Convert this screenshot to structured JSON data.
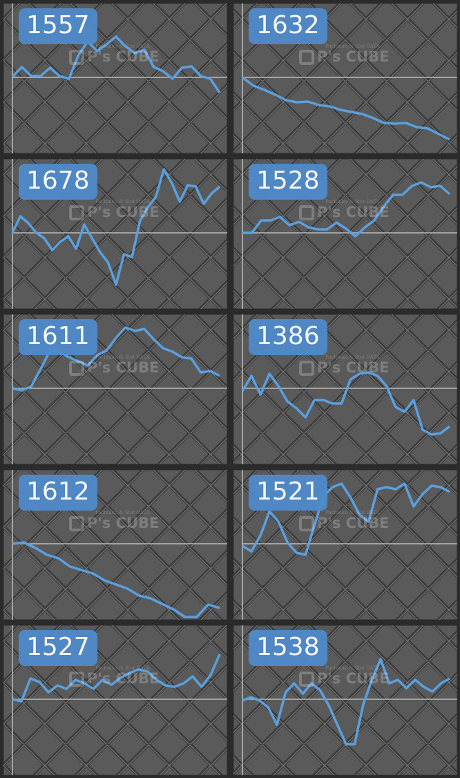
{
  "watermark": {
    "line1": "Pachinko & Slot DATA",
    "logo": "P's CUBE"
  },
  "colors": {
    "line": "#5aa0e0",
    "label_bg": "#4f8bcb",
    "panel_bg": "#5a5a5a",
    "baseline": "#bdbdbd"
  },
  "chart_data": [
    {
      "type": "line",
      "title": "1557",
      "values": [
        1,
        15,
        2,
        2,
        14,
        2,
        -2,
        32,
        52,
        38,
        48,
        59,
        45,
        35,
        40,
        15,
        9,
        -2,
        14,
        16,
        2,
        -2,
        -22
      ]
    },
    {
      "type": "line",
      "title": "1632",
      "values": [
        0,
        -12,
        -18,
        -25,
        -33,
        -36,
        -35,
        -40,
        -42,
        -47,
        -50,
        -53,
        -59,
        -66,
        -67,
        -66,
        -72,
        -74,
        -82,
        -90
      ]
    },
    {
      "type": "line",
      "title": "1678",
      "values": [
        0,
        24,
        14,
        0,
        -8,
        -25,
        -13,
        -5,
        -23,
        12,
        -8,
        -28,
        -43,
        -75,
        -31,
        -35,
        17,
        37,
        52,
        92,
        72,
        45,
        69,
        67,
        42,
        57,
        67
      ]
    },
    {
      "type": "line",
      "title": "1528",
      "values": [
        0,
        0,
        18,
        18,
        23,
        11,
        16,
        8,
        5,
        5,
        15,
        6,
        -5,
        8,
        18,
        38,
        55,
        55,
        68,
        73,
        66,
        68,
        56
      ]
    },
    {
      "type": "line",
      "title": "1611",
      "values": [
        0,
        -3,
        3,
        28,
        55,
        53,
        45,
        39,
        33,
        48,
        55,
        73,
        88,
        83,
        86,
        71,
        58,
        53,
        45,
        43,
        23,
        25,
        18
      ]
    },
    {
      "type": "line",
      "title": "1386",
      "values": [
        -4,
        18,
        -9,
        21,
        3,
        -19,
        -29,
        -42,
        -17,
        -17,
        -22,
        -22,
        13,
        21,
        23,
        18,
        3,
        -27,
        -34,
        -17,
        -60,
        -67,
        -65,
        -55
      ]
    },
    {
      "type": "line",
      "title": "1612",
      "values": [
        0,
        2,
        -6,
        -16,
        -21,
        -33,
        -38,
        -43,
        -53,
        -59,
        -65,
        -75,
        -79,
        -87,
        -95,
        -106,
        -106,
        -88,
        -93
      ]
    },
    {
      "type": "line",
      "title": "1521",
      "values": [
        -3,
        -11,
        12,
        47,
        32,
        2,
        -13,
        -16,
        27,
        69,
        82,
        87,
        67,
        42,
        32,
        79,
        82,
        79,
        87,
        54,
        72,
        84,
        82,
        75
      ]
    },
    {
      "type": "line",
      "title": "1527",
      "values": [
        0,
        -3,
        30,
        25,
        10,
        20,
        15,
        28,
        23,
        15,
        28,
        21,
        31,
        38,
        43,
        40,
        28,
        20,
        18,
        23,
        33,
        18,
        35,
        65
      ]
    },
    {
      "type": "line",
      "title": "1538",
      "values": [
        -2,
        3,
        -2,
        -12,
        -37,
        10,
        23,
        8,
        23,
        13,
        -9,
        -37,
        -65,
        -65,
        -7,
        28,
        58,
        23,
        28,
        16,
        28,
        18,
        11,
        23,
        30
      ]
    }
  ]
}
